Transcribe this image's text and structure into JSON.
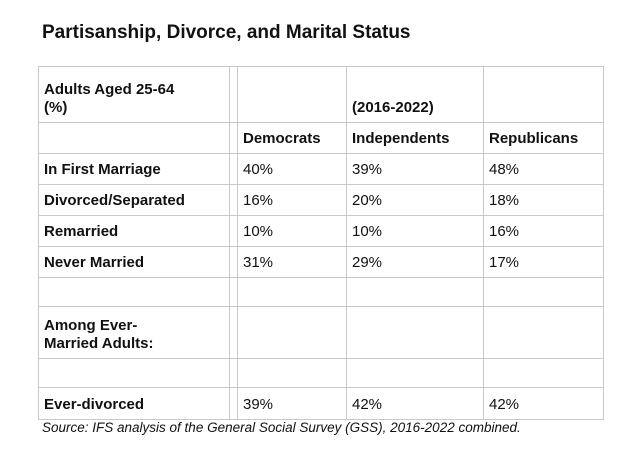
{
  "page": {
    "title": "Partisanship, Divorce, and Marital Status",
    "source_note": "Source: IFS analysis of the General Social Survey (GSS), 2016-2022 combined."
  },
  "colors": {
    "background": "#ffffff",
    "text": "#111111",
    "grid_border": "#c9c9c9"
  },
  "chart_data": {
    "type": "table",
    "title": "Partisanship, Divorce, and Marital Status",
    "corner_label": "Adults Aged 25-64\n(%)",
    "period_label": "(2016-2022)",
    "columns": [
      "Democrats",
      "Independents",
      "Republicans"
    ],
    "rows": [
      {
        "label": "In First Marriage",
        "values": [
          40,
          39,
          48
        ],
        "display": [
          "40%",
          "39%",
          "48%"
        ]
      },
      {
        "label": "Divorced/Separated",
        "values": [
          16,
          20,
          18
        ],
        "display": [
          "16%",
          "20%",
          "18%"
        ]
      },
      {
        "label": "Remarried",
        "values": [
          10,
          10,
          16
        ],
        "display": [
          "10%",
          "10%",
          "16%"
        ]
      },
      {
        "label": "Never Married",
        "values": [
          31,
          29,
          17
        ],
        "display": [
          "31%",
          "29%",
          "17%"
        ]
      }
    ],
    "section_header": "Among Ever-\nMarried Adults:",
    "section_rows": [
      {
        "label": "Ever-divorced",
        "values": [
          39,
          42,
          42
        ],
        "display": [
          "39%",
          "42%",
          "42%"
        ]
      }
    ],
    "source": "Source: IFS analysis of the General Social Survey (GSS), 2016-2022 combined.",
    "layout": {
      "grid": "on",
      "legend": "none"
    }
  }
}
